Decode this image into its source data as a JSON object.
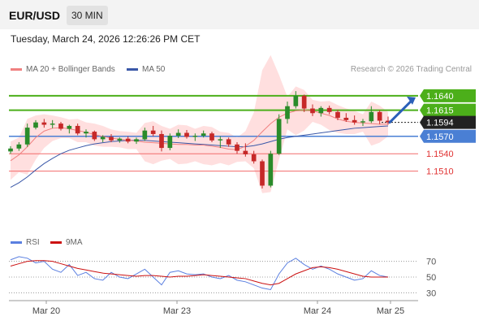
{
  "header": {
    "symbol": "EUR/USD",
    "timeframe": "30 MIN",
    "timestamp": "Tuesday, March 24, 2026 12:26:26 PM CET"
  },
  "legend": {
    "bollinger_label": "MA 20 + Bollinger Bands",
    "ma50_label": "MA 50",
    "credit": "Research © 2026 Trading Central",
    "rsi_label": "RSI",
    "rsi_ma_label": "9MA"
  },
  "colors": {
    "bullish": "#2a8b2a",
    "bearish": "#c62828",
    "resistance": "#4caf1a",
    "pivot": "#4a7fd4",
    "support": "#f26b6b",
    "last": "#222222",
    "ma20": "#f08080",
    "ma50": "#3a58a8",
    "band": "#ffd9d9",
    "rsi": "#5a7fe0",
    "rsi_ma": "#cc1111",
    "arrow": "#2a5fb8"
  },
  "chart_data": [
    {
      "type": "candlestick",
      "title": "EUR/USD 30 MIN",
      "x_ticks": [
        "Mar 20",
        "Mar 23",
        "Mar 24",
        "Mar 25"
      ],
      "ylim": [
        1.141,
        1.1665
      ],
      "series": [
        {
          "name": "MA 20 + Bollinger Bands",
          "values": [
            1.1528,
            1.1538,
            1.1552,
            1.1568,
            1.1579,
            1.1584,
            1.1585,
            1.1583,
            1.158,
            1.1577,
            1.1573,
            1.157,
            1.1567,
            1.1565,
            1.1563,
            1.1562,
            1.156,
            1.1559,
            1.1558,
            1.1557,
            1.1556,
            1.1556,
            1.1555,
            1.1555,
            1.1553,
            1.1551,
            1.1548,
            1.1547,
            1.1553,
            1.1563,
            1.1578,
            1.1592,
            1.1603,
            1.161,
            1.1614,
            1.1615,
            1.1614,
            1.161,
            1.1606,
            1.16,
            1.1596,
            1.1594,
            1.1593,
            1.1592,
            1.1591,
            1.1591
          ]
        },
        {
          "name": "MA 50",
          "values": [
            1.1482,
            1.149,
            1.15,
            1.1512,
            1.1523,
            1.1532,
            1.154,
            1.1546,
            1.155,
            1.1554,
            1.1557,
            1.1559,
            1.1561,
            1.1562,
            1.1563,
            1.1563,
            1.1563,
            1.1562,
            1.1561,
            1.156,
            1.1559,
            1.1558,
            1.1557,
            1.1556,
            1.1555,
            1.1554,
            1.1553,
            1.1552,
            1.1552,
            1.1554,
            1.1557,
            1.1561,
            1.1565,
            1.1568,
            1.157,
            1.1572,
            1.1574,
            1.1576,
            1.1578,
            1.158,
            1.1582,
            1.1584,
            1.1585,
            1.1586,
            1.1587,
            1.1588
          ]
        }
      ],
      "candles_ohlc": [
        [
          1.1544,
          1.1553,
          1.154,
          1.1549
        ],
        [
          1.1549,
          1.156,
          1.1545,
          1.1556
        ],
        [
          1.1556,
          1.1592,
          1.1552,
          1.1585
        ],
        [
          1.1585,
          1.1598,
          1.1582,
          1.1594
        ],
        [
          1.1594,
          1.16,
          1.1585,
          1.159
        ],
        [
          1.159,
          1.1598,
          1.1584,
          1.1592
        ],
        [
          1.1592,
          1.1595,
          1.158,
          1.1583
        ],
        [
          1.1583,
          1.159,
          1.1575,
          1.1588
        ],
        [
          1.1588,
          1.1592,
          1.1572,
          1.1575
        ],
        [
          1.1575,
          1.1582,
          1.1568,
          1.1578
        ],
        [
          1.1578,
          1.158,
          1.1562,
          1.1565
        ],
        [
          1.1565,
          1.1572,
          1.156,
          1.1569
        ],
        [
          1.1569,
          1.1574,
          1.156,
          1.1563
        ],
        [
          1.1563,
          1.1568,
          1.1559,
          1.1566
        ],
        [
          1.1566,
          1.157,
          1.1558,
          1.1561
        ],
        [
          1.1561,
          1.1568,
          1.1557,
          1.1565
        ],
        [
          1.1565,
          1.1585,
          1.1562,
          1.158
        ],
        [
          1.158,
          1.1588,
          1.157,
          1.1574
        ],
        [
          1.1574,
          1.158,
          1.1544,
          1.155
        ],
        [
          1.155,
          1.1575,
          1.1546,
          1.1571
        ],
        [
          1.1571,
          1.1582,
          1.1567,
          1.1576
        ],
        [
          1.1576,
          1.1581,
          1.1566,
          1.1569
        ],
        [
          1.1569,
          1.1575,
          1.1562,
          1.1571
        ],
        [
          1.1571,
          1.158,
          1.1568,
          1.1575
        ],
        [
          1.1575,
          1.1578,
          1.156,
          1.1563
        ],
        [
          1.1563,
          1.157,
          1.155,
          1.1565
        ],
        [
          1.1565,
          1.1568,
          1.1552,
          1.1556
        ],
        [
          1.1556,
          1.156,
          1.154,
          1.1545
        ],
        [
          1.1545,
          1.1558,
          1.1535,
          1.1539
        ],
        [
          1.1539,
          1.1545,
          1.1523,
          1.1527
        ],
        [
          1.1527,
          1.153,
          1.148,
          1.1485
        ],
        [
          1.1485,
          1.1545,
          1.1482,
          1.154
        ],
        [
          1.154,
          1.1608,
          1.1538,
          1.16
        ],
        [
          1.16,
          1.163,
          1.1592,
          1.1622
        ],
        [
          1.1622,
          1.1648,
          1.1618,
          1.164
        ],
        [
          1.164,
          1.1642,
          1.1612,
          1.1618
        ],
        [
          1.1618,
          1.1625,
          1.1605,
          1.161
        ],
        [
          1.161,
          1.1622,
          1.1604,
          1.1619
        ],
        [
          1.1619,
          1.1623,
          1.1608,
          1.1612
        ],
        [
          1.1612,
          1.1616,
          1.1598,
          1.1602
        ],
        [
          1.1602,
          1.161,
          1.1595,
          1.1598
        ],
        [
          1.1598,
          1.1606,
          1.159,
          1.1594
        ],
        [
          1.1594,
          1.16,
          1.1588,
          1.1596
        ],
        [
          1.1596,
          1.1622,
          1.1593,
          1.1612
        ],
        [
          1.1612,
          1.1615,
          1.1591,
          1.1597
        ],
        [
          1.1597,
          1.1604,
          1.159,
          1.1594
        ]
      ],
      "levels": [
        {
          "label": "1.1640",
          "value": 1.164,
          "role": "resistance"
        },
        {
          "label": "1.1615",
          "value": 1.1615,
          "role": "resistance"
        },
        {
          "label": "1.1594",
          "value": 1.1594,
          "role": "last"
        },
        {
          "label": "1.1570",
          "value": 1.157,
          "role": "pivot"
        },
        {
          "label": "1.1540",
          "value": 1.154,
          "role": "support"
        },
        {
          "label": "1.1510",
          "value": 1.151,
          "role": "support"
        }
      ],
      "arrow": {
        "from": 1.1594,
        "to": 1.164,
        "direction": "up"
      }
    },
    {
      "type": "line",
      "title": "RSI",
      "y_ticks": [
        70,
        50,
        30
      ],
      "ylim": [
        20,
        80
      ],
      "series": [
        {
          "name": "RSI",
          "values": [
            72,
            76,
            74,
            68,
            70,
            60,
            56,
            66,
            52,
            56,
            48,
            46,
            56,
            50,
            48,
            54,
            60,
            50,
            40,
            56,
            58,
            54,
            53,
            54,
            50,
            48,
            52,
            46,
            44,
            40,
            36,
            34,
            54,
            68,
            74,
            66,
            60,
            64,
            60,
            54,
            50,
            46,
            48,
            58,
            52,
            50
          ]
        },
        {
          "name": "9MA",
          "values": [
            64,
            67,
            70,
            71,
            71,
            70,
            67,
            64,
            61,
            59,
            57,
            55,
            54,
            53,
            52,
            51,
            52,
            52,
            51,
            50,
            51,
            51,
            52,
            53,
            52,
            51,
            50,
            49,
            48,
            45,
            42,
            40,
            42,
            48,
            54,
            58,
            62,
            63,
            62,
            60,
            57,
            54,
            51,
            50,
            50,
            50
          ]
        }
      ]
    }
  ]
}
